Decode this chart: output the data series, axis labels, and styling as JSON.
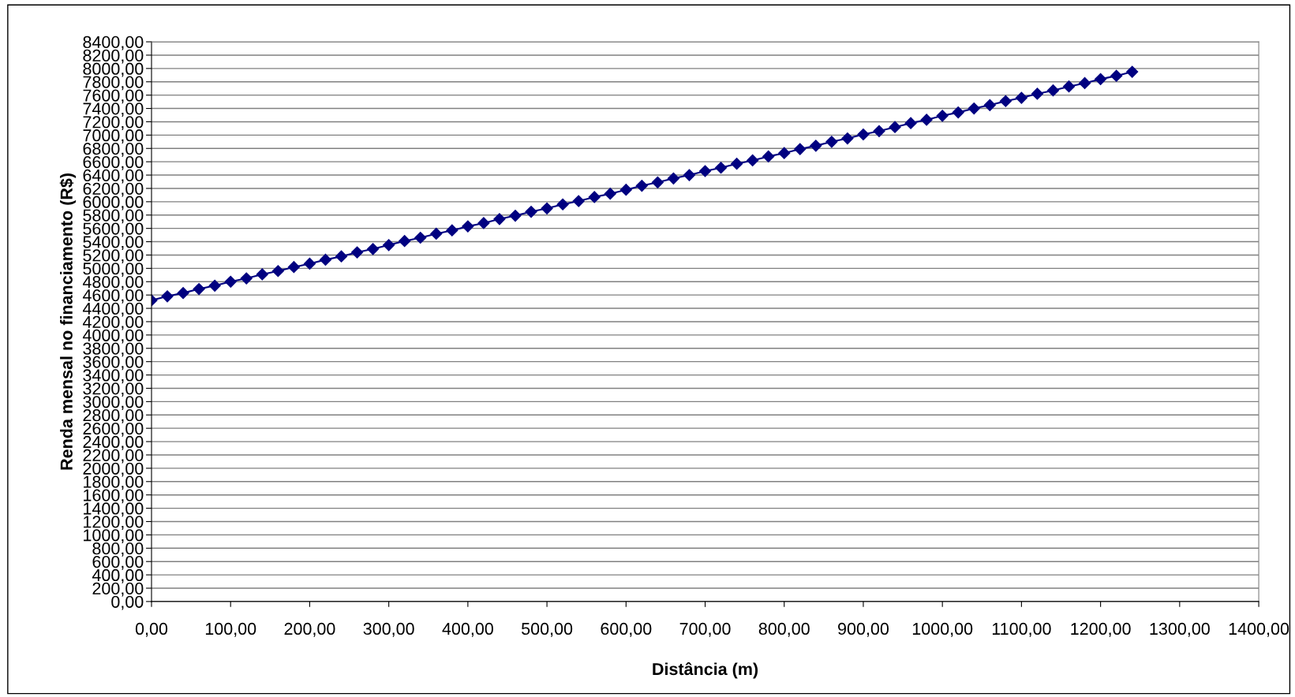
{
  "chart_data": {
    "type": "line",
    "xlabel": "Distância (m)",
    "ylabel": "Renda mensal no financiamento (R$)",
    "x": [
      0,
      20,
      40,
      60,
      80,
      100,
      120,
      140,
      160,
      180,
      200,
      220,
      240,
      260,
      280,
      300,
      320,
      340,
      360,
      380,
      400,
      420,
      440,
      460,
      480,
      500,
      520,
      540,
      560,
      580,
      600,
      620,
      640,
      660,
      680,
      700,
      720,
      740,
      760,
      780,
      800,
      820,
      840,
      860,
      880,
      900,
      920,
      940,
      960,
      980,
      1000,
      1020,
      1040,
      1060,
      1080,
      1100,
      1120,
      1140,
      1160,
      1180,
      1200,
      1220,
      1240
    ],
    "series": [
      {
        "color": "#000080",
        "values": [
          4520,
          4580,
          4630,
          4690,
          4740,
          4800,
          4850,
          4910,
          4960,
          5020,
          5070,
          5130,
          5180,
          5240,
          5290,
          5350,
          5410,
          5460,
          5520,
          5570,
          5630,
          5680,
          5740,
          5790,
          5850,
          5900,
          5960,
          6010,
          6070,
          6120,
          6180,
          6240,
          6290,
          6350,
          6400,
          6460,
          6510,
          6570,
          6620,
          6680,
          6730,
          6790,
          6840,
          6900,
          6950,
          7010,
          7060,
          7120,
          7180,
          7230,
          7290,
          7340,
          7400,
          7450,
          7510,
          7560,
          7620,
          7670,
          7730,
          7780,
          7840,
          7890,
          7950
        ]
      }
    ],
    "marker": "diamond",
    "line_style": "solid",
    "grid": "y",
    "xlim": [
      0,
      1400
    ],
    "ylim": [
      0,
      8400
    ],
    "xticks": [
      {
        "value": 0,
        "label": "0,00"
      },
      {
        "value": 100,
        "label": "100,00"
      },
      {
        "value": 200,
        "label": "200,00"
      },
      {
        "value": 300,
        "label": "300,00"
      },
      {
        "value": 400,
        "label": "400,00"
      },
      {
        "value": 500,
        "label": "500,00"
      },
      {
        "value": 600,
        "label": "600,00"
      },
      {
        "value": 700,
        "label": "700,00"
      },
      {
        "value": 800,
        "label": "800,00"
      },
      {
        "value": 900,
        "label": "900,00"
      },
      {
        "value": 1000,
        "label": "1000,00"
      },
      {
        "value": 1100,
        "label": "1100,00"
      },
      {
        "value": 1200,
        "label": "1200,00"
      },
      {
        "value": 1300,
        "label": "1300,00"
      },
      {
        "value": 1400,
        "label": "1400,00"
      }
    ],
    "yticks": [
      {
        "value": 0,
        "label": "0,00"
      },
      {
        "value": 200,
        "label": "200,00"
      },
      {
        "value": 400,
        "label": "400,00"
      },
      {
        "value": 600,
        "label": "600,00"
      },
      {
        "value": 800,
        "label": "800,00"
      },
      {
        "value": 1000,
        "label": "1000,00"
      },
      {
        "value": 1200,
        "label": "1200,00"
      },
      {
        "value": 1400,
        "label": "1400,00"
      },
      {
        "value": 1600,
        "label": "1600,00"
      },
      {
        "value": 1800,
        "label": "1800,00"
      },
      {
        "value": 2000,
        "label": "2000,00"
      },
      {
        "value": 2200,
        "label": "2200,00"
      },
      {
        "value": 2400,
        "label": "2400,00"
      },
      {
        "value": 2600,
        "label": "2600,00"
      },
      {
        "value": 2800,
        "label": "2800,00"
      },
      {
        "value": 3000,
        "label": "3000,00"
      },
      {
        "value": 3200,
        "label": "3200,00"
      },
      {
        "value": 3400,
        "label": "3400,00"
      },
      {
        "value": 3600,
        "label": "3600,00"
      },
      {
        "value": 3800,
        "label": "3800,00"
      },
      {
        "value": 4000,
        "label": "4000,00"
      },
      {
        "value": 4200,
        "label": "4200,00"
      },
      {
        "value": 4400,
        "label": "4400,00"
      },
      {
        "value": 4600,
        "label": "4600,00"
      },
      {
        "value": 4800,
        "label": "4800,00"
      },
      {
        "value": 5000,
        "label": "5000,00"
      },
      {
        "value": 5200,
        "label": "5200,00"
      },
      {
        "value": 5400,
        "label": "5400,00"
      },
      {
        "value": 5600,
        "label": "5600,00"
      },
      {
        "value": 5800,
        "label": "5800,00"
      },
      {
        "value": 6000,
        "label": "6000,00"
      },
      {
        "value": 6200,
        "label": "6200,00"
      },
      {
        "value": 6400,
        "label": "6400,00"
      },
      {
        "value": 6600,
        "label": "6600,00"
      },
      {
        "value": 6800,
        "label": "6800,00"
      },
      {
        "value": 7000,
        "label": "7000,00"
      },
      {
        "value": 7200,
        "label": "7200,00"
      },
      {
        "value": 7400,
        "label": "7400,00"
      },
      {
        "value": 7600,
        "label": "7600,00"
      },
      {
        "value": 7800,
        "label": "7800,00"
      },
      {
        "value": 8000,
        "label": "8000,00"
      },
      {
        "value": 8200,
        "label": "8200,00"
      },
      {
        "value": 8400,
        "label": "8400,00"
      }
    ]
  }
}
